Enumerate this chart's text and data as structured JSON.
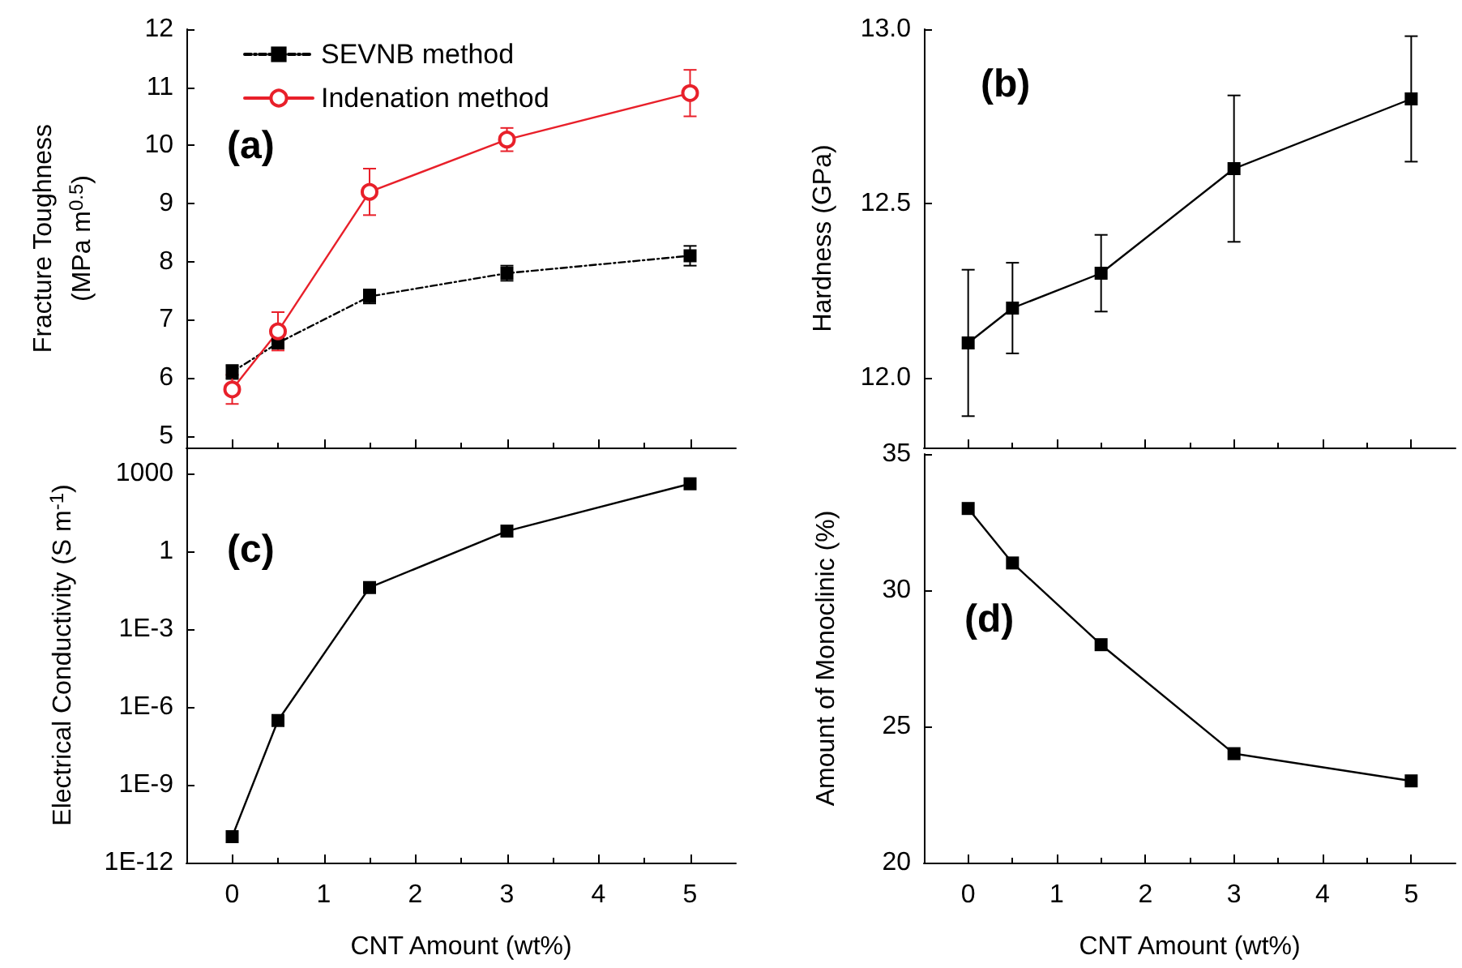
{
  "chart_data": [
    {
      "type": "line",
      "ylabel": "Fracture Toughness\n(MPa m$^{0.5}$)",
      "annotations": [
        "(a)"
      ],
      "x": [
        0,
        0.5,
        1.5,
        3,
        5
      ],
      "xlim": [
        -0.5,
        5.5
      ],
      "xticks": [
        0,
        1,
        2,
        3,
        4,
        5
      ],
      "ylim": [
        4.8,
        12
      ],
      "yticks": [
        5,
        6,
        7,
        8,
        9,
        10,
        11,
        12
      ],
      "tick_labels": "y",
      "legend": "top left",
      "grid": false,
      "series": [
        {
          "name": "SEVNB method",
          "color": "#000000",
          "marker": "square",
          "line_style": "dashed",
          "values": [
            6.1,
            6.6,
            7.4,
            7.8,
            8.1
          ],
          "errors": [
            0.12,
            0.1,
            0.12,
            0.13,
            0.17
          ]
        },
        {
          "name": "Indenation method",
          "color": "#e8202a",
          "marker": "circle",
          "line_style": "solid",
          "values": [
            5.8,
            6.8,
            9.2,
            10.1,
            10.9
          ],
          "errors": [
            0.25,
            0.33,
            0.4,
            0.2,
            0.4
          ]
        }
      ]
    },
    {
      "type": "line",
      "ylabel": "Hardness (GPa)",
      "annotations": [
        "(b)"
      ],
      "x": [
        0,
        0.5,
        1.5,
        3,
        5
      ],
      "xlim": [
        -0.5,
        5.5
      ],
      "xticks": [
        0,
        1,
        2,
        3,
        4,
        5
      ],
      "ylim": [
        11.8,
        13
      ],
      "yticks": [
        {
          "value": 12,
          "label": "12.0"
        },
        {
          "value": 12.5,
          "label": "12.5"
        },
        {
          "value": 13,
          "label": "13.0"
        }
      ],
      "tick_labels": "y",
      "grid": false,
      "legend": false,
      "series": [
        {
          "color": "#000000",
          "marker": "square",
          "line_style": "solid",
          "values": [
            12.1,
            12.2,
            12.3,
            12.6,
            12.8
          ],
          "errors": [
            0.21,
            0.13,
            0.11,
            0.21,
            0.18
          ]
        }
      ]
    },
    {
      "type": "line",
      "xlabel": "CNT Amount (wt%)",
      "ylabel": "Electrical Conductivity (S m$^{-1}$)",
      "annotations": [
        "(c)"
      ],
      "x": [
        0,
        0.5,
        1.5,
        3,
        5
      ],
      "xlim": [
        -0.5,
        5.5
      ],
      "xticks": [
        0,
        1,
        2,
        3,
        4,
        5
      ],
      "ylim": [
        1e-12,
        10000
      ],
      "log": "y",
      "yticks": [
        {
          "value": 1e-12,
          "label": "1E-12"
        },
        {
          "value": 1e-09,
          "label": "1E-9"
        },
        {
          "value": 1e-06,
          "label": "1E-6"
        },
        {
          "value": 0.001,
          "label": "1E-3"
        },
        1,
        1000
      ],
      "grid": false,
      "legend": false,
      "series": [
        {
          "color": "#000000",
          "marker": "square",
          "line_style": "solid",
          "values": [
            1e-11,
            3e-07,
            0.04,
            6,
            400
          ]
        }
      ]
    },
    {
      "type": "line",
      "xlabel": "CNT Amount (wt%)",
      "ylabel": "Amount of Monoclinic (%)",
      "annotations": [
        "(d)"
      ],
      "x": [
        0,
        0.5,
        1.5,
        3,
        5
      ],
      "xlim": [
        -0.5,
        5.5
      ],
      "xticks": [
        0,
        1,
        2,
        3,
        4,
        5
      ],
      "ylim": [
        20,
        35
      ],
      "yticks": [
        20,
        25,
        30,
        35
      ],
      "grid": false,
      "legend": false,
      "series": [
        {
          "color": "#000000",
          "marker": "square",
          "line_style": "solid",
          "values": [
            33,
            31,
            28,
            24,
            23
          ]
        }
      ]
    }
  ]
}
